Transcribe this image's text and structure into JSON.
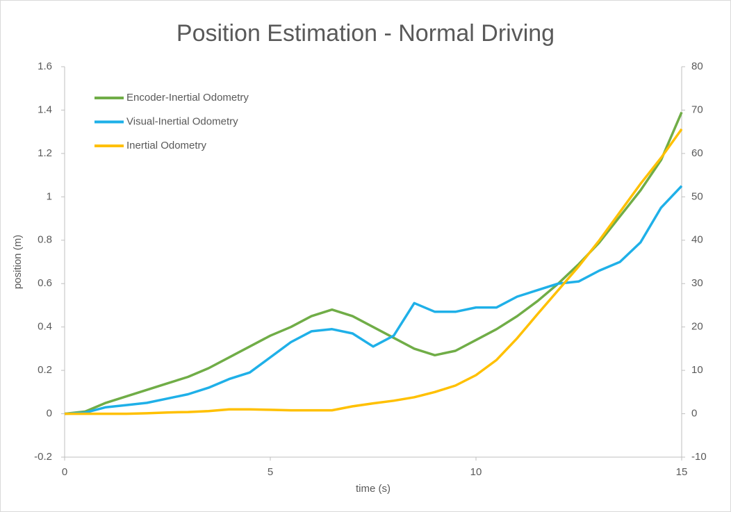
{
  "chart_data": {
    "type": "line",
    "title": "Position Estimation - Normal Driving",
    "xlabel": "time (s)",
    "ylabel": "position (m)",
    "x": [
      0,
      0.5,
      1,
      1.5,
      2,
      2.5,
      3,
      3.5,
      4,
      4.5,
      5,
      5.5,
      6,
      6.5,
      7,
      7.5,
      8,
      8.5,
      9,
      9.5,
      10,
      10.5,
      11,
      11.5,
      12,
      12.5,
      13,
      13.5,
      14,
      14.5,
      15
    ],
    "series": [
      {
        "name": "Encoder-Inertial Odometry",
        "color": "#70ad47",
        "values": [
          0,
          0.01,
          0.05,
          0.08,
          0.11,
          0.14,
          0.17,
          0.21,
          0.26,
          0.31,
          0.36,
          0.4,
          0.45,
          0.48,
          0.45,
          0.4,
          0.35,
          0.3,
          0.27,
          0.29,
          0.34,
          0.39,
          0.45,
          0.52,
          0.6,
          0.69,
          0.79,
          0.91,
          1.03,
          1.17,
          1.39
        ]
      },
      {
        "name": "Visual-Inertial Odometry",
        "color": "#1fb0e8",
        "values": [
          0,
          0.005,
          0.03,
          0.04,
          0.05,
          0.07,
          0.09,
          0.12,
          0.16,
          0.19,
          0.26,
          0.33,
          0.38,
          0.39,
          0.37,
          0.31,
          0.36,
          0.51,
          0.47,
          0.47,
          0.49,
          0.49,
          0.54,
          0.57,
          0.6,
          0.61,
          0.66,
          0.7,
          0.79,
          0.95,
          1.05
        ]
      },
      {
        "name": "Inertial Odometry",
        "color": "#ffc000",
        "axis": "y2",
        "values": [
          0,
          0,
          0,
          0,
          0.1,
          0.3,
          0.4,
          0.6,
          1,
          1,
          0.9,
          0.8,
          0.8,
          0.8,
          1.7,
          2.4,
          3,
          3.8,
          5,
          6.5,
          8.9,
          12.4,
          17.4,
          23,
          28.5,
          34,
          40,
          46.5,
          53,
          59,
          65.6
        ]
      }
    ],
    "xlim": [
      0,
      15
    ],
    "xticks": [
      0,
      5,
      10,
      15
    ],
    "ylim": [
      -0.2,
      1.6
    ],
    "yticks": [
      -0.2,
      0,
      0.2,
      0.4,
      0.6,
      0.8,
      1,
      1.2,
      1.4,
      1.6
    ],
    "y2lim": [
      -10,
      80
    ],
    "y2ticks": [
      -10,
      0,
      10,
      20,
      30,
      40,
      50,
      60,
      70,
      80
    ],
    "legend": "upper left"
  }
}
